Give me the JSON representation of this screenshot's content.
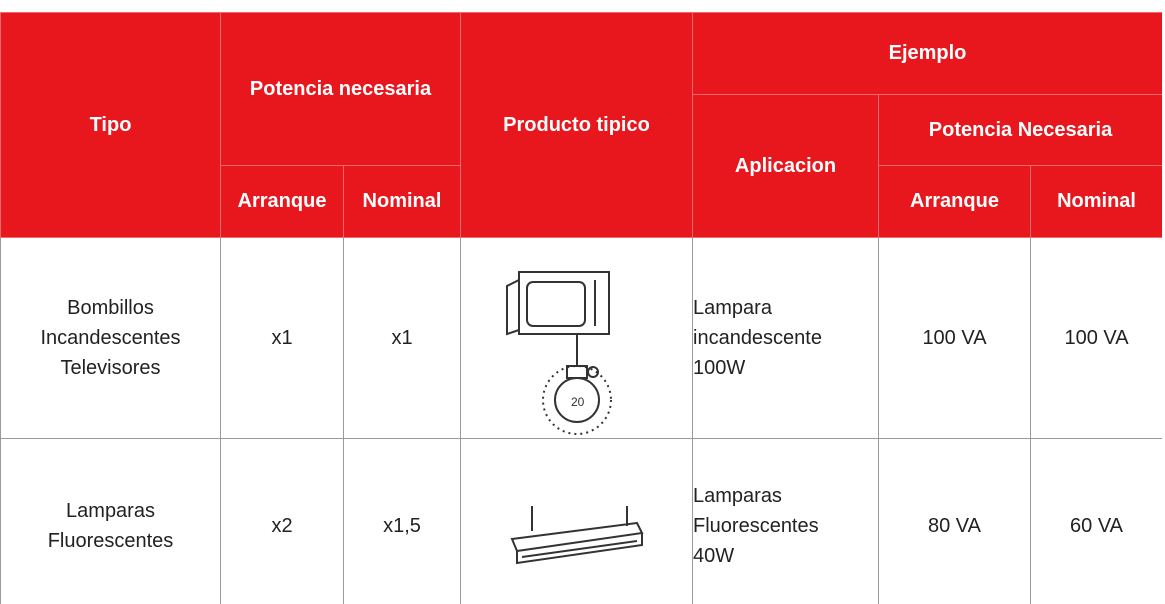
{
  "table": {
    "header": {
      "tipo": "Tipo",
      "potencia": "Potencia necesaria",
      "arranque": "Arranque",
      "nominal": "Nominal",
      "producto": "Producto tipico",
      "ejemplo": "Ejemplo",
      "aplicacion": "Aplicacion",
      "potencia_ejemplo": "Potencia Necesaria",
      "arranque_ejemplo": "Arranque",
      "nominal_ejemplo": "Nominal"
    },
    "rows": [
      [
        "Bombillos\nIncandescentes\nTelevisores",
        "x1",
        "x1",
        "Lampara\nincandescente\n100W",
        "100 VA",
        "100 VA"
      ],
      [
        "Lamparas\nFluorescentes",
        "x2",
        "x1,5",
        "Lamparas\nFluorescentes\n40W",
        "80 VA",
        "60 VA"
      ]
    ]
  }
}
